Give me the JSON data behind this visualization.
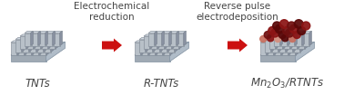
{
  "background_color": "#ffffff",
  "title_fontsize": 7.5,
  "label_fontsize": 8.5,
  "arrow1_label": "Electrochemical\nreduction",
  "arrow2_label": "Reverse pulse\nelectrodeposition",
  "label1": "TNTs",
  "label2": "R-TNTs",
  "arrow_color": "#cc1111",
  "tube_face": "#b8c0c8",
  "tube_edge": "#7a8490",
  "tube_top": "#d0d8e0",
  "tube_side": "#8890a0",
  "base_top": "#c8d4dc",
  "base_front": "#a0aab4",
  "base_side": "#b0bcc8",
  "base_edge": "#8090a0",
  "dot_dark1": "#5a0808",
  "dot_dark2": "#8b1414",
  "dot_dark3": "#701010",
  "dot_mid1": "#a02020",
  "dot_light1": "#c87060",
  "dot_light2": "#d49080",
  "text_color": "#444444"
}
